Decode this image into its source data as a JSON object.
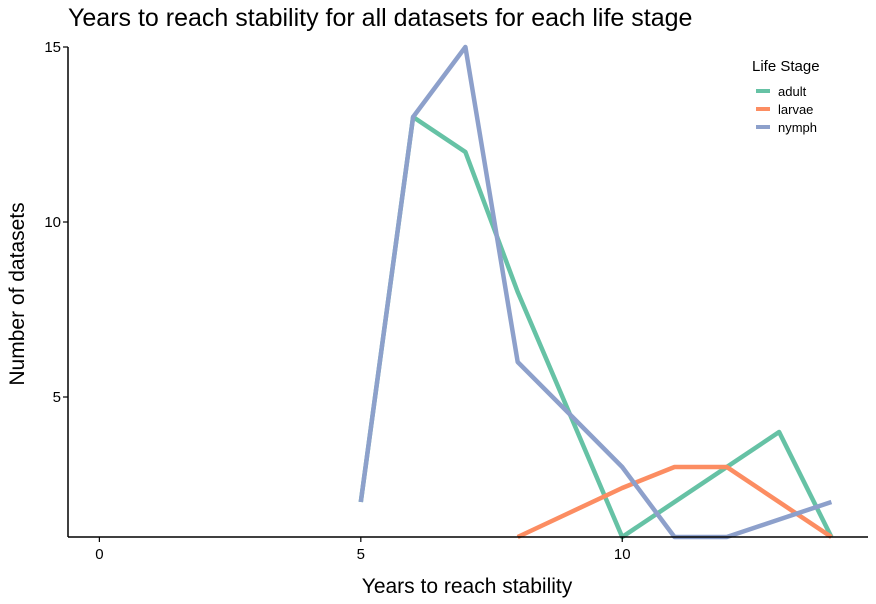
{
  "chart_data": {
    "type": "line",
    "title": "Years to reach stability for all datasets for each life stage",
    "xlabel": "Years to reach stability",
    "ylabel": "Number of datasets",
    "xlim": [
      -0.6,
      14.7
    ],
    "ylim": [
      1,
      15
    ],
    "xticks": [
      0,
      5,
      10
    ],
    "yticks": [
      5,
      10,
      15
    ],
    "grid": false,
    "legend": {
      "title": "Life Stage",
      "placement": "top-right"
    },
    "series": [
      {
        "name": "adult",
        "color": "#66c2a5",
        "x": [
          5,
          6,
          7,
          8,
          9,
          10,
          11,
          12,
          13,
          14
        ],
        "y": [
          2,
          13,
          12,
          8,
          4.5,
          1,
          2,
          3,
          4,
          1
        ]
      },
      {
        "name": "larvae",
        "color": "#fc8d62",
        "x": [
          8,
          9,
          10,
          11,
          12,
          13,
          14
        ],
        "y": [
          1,
          1.7,
          2.4,
          3,
          3,
          2,
          1
        ]
      },
      {
        "name": "nymph",
        "color": "#8da0cb",
        "x": [
          5,
          6,
          7,
          8,
          9,
          10,
          11,
          12,
          13,
          14
        ],
        "y": [
          2,
          13,
          15,
          6,
          4.5,
          3,
          1,
          1,
          1.5,
          2
        ]
      }
    ]
  }
}
